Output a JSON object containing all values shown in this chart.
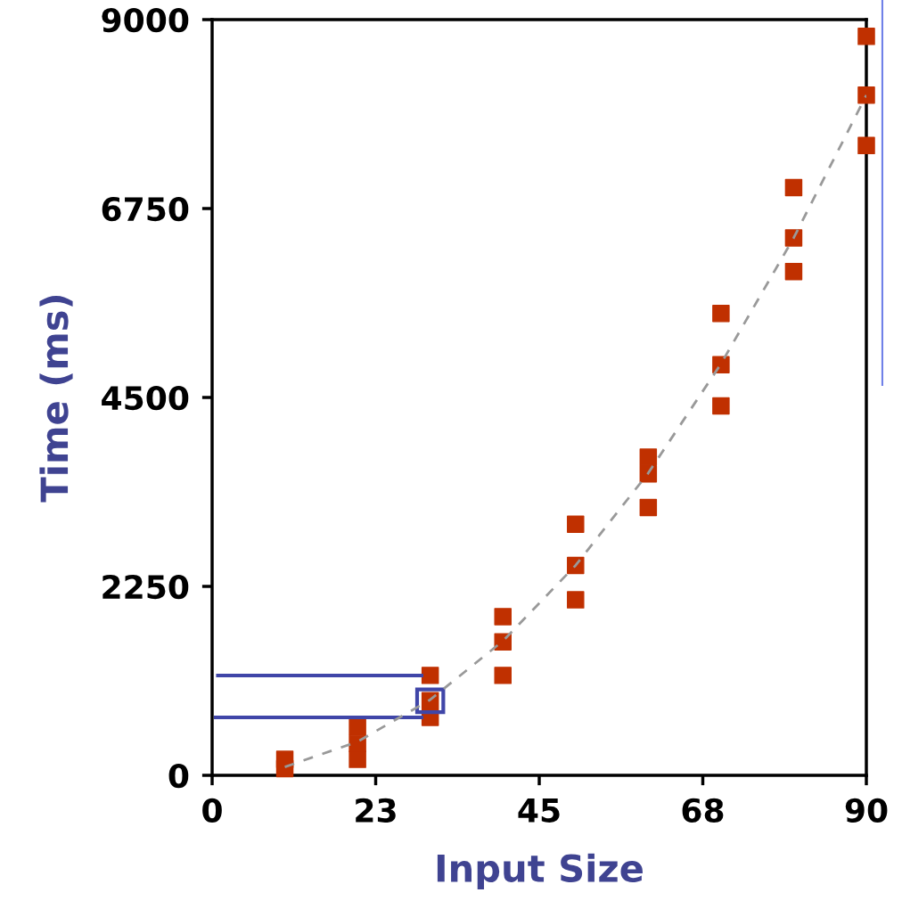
{
  "chart_data": {
    "type": "scatter",
    "xlabel": "Input Size",
    "ylabel": "Time (ms)",
    "xlim": [
      0,
      90
    ],
    "ylim": [
      0,
      9000
    ],
    "xticks": [
      0,
      {
        "value": 22.5,
        "label": "23"
      },
      45,
      {
        "value": 67.5,
        "label": "68"
      },
      90
    ],
    "yticks": [
      0,
      2250,
      4500,
      6750,
      9000
    ],
    "grid": false,
    "marker": "square",
    "series": [
      {
        "color": "#c03000",
        "x": [
          10,
          10,
          20,
          20,
          20,
          30,
          30,
          30,
          40,
          40,
          40,
          50,
          50,
          50,
          60,
          60,
          60,
          70,
          70,
          70,
          80,
          80,
          80,
          90,
          90,
          90
        ],
        "values": [
          190,
          80,
          580,
          380,
          190,
          1190,
          890,
          690,
          1890,
          1590,
          1190,
          2990,
          2500,
          2090,
          3790,
          3590,
          3190,
          5500,
          4890,
          4400,
          7000,
          6400,
          6000,
          8800,
          8100,
          7500
        ]
      },
      {
        "type": "line",
        "color": "#999999",
        "line_style": "dashed",
        "marker": "none",
        "x": [
          10,
          20,
          30,
          40,
          50,
          60,
          70,
          80,
          90
        ],
        "values": [
          100,
          400,
          900,
          1600,
          2500,
          3600,
          4900,
          6400,
          8100
        ]
      }
    ]
  }
}
